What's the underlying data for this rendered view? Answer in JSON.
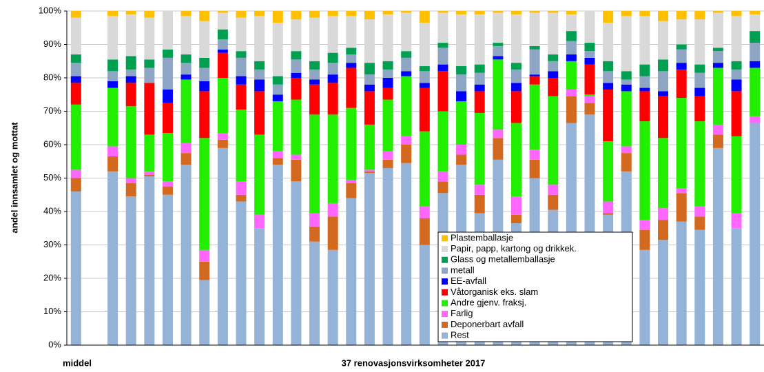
{
  "chart_data": {
    "type": "stacked_bar",
    "y_label": "andel innsamlet og mottat",
    "x_annotations": [
      "middel",
      "37 renovasjonsvirksomheter 2017"
    ],
    "categories": [
      null,
      null,
      null,
      null,
      null,
      null,
      null,
      null,
      null,
      null,
      null,
      null,
      null,
      null,
      null,
      null,
      null,
      null,
      null,
      null,
      null,
      null,
      null,
      null,
      null,
      null,
      null,
      null,
      null,
      null,
      null,
      null,
      null,
      null,
      null,
      null,
      null,
      null
    ],
    "ylim": [
      0,
      100
    ],
    "yticks": [
      {
        "value": 0,
        "label": "0%"
      },
      {
        "value": 10,
        "label": "10%"
      },
      {
        "value": 20,
        "label": "20%"
      },
      {
        "value": 30,
        "label": "30%"
      },
      {
        "value": 40,
        "label": "40%"
      },
      {
        "value": 50,
        "label": "50%"
      },
      {
        "value": 60,
        "label": "60%"
      },
      {
        "value": 70,
        "label": "70%"
      },
      {
        "value": 80,
        "label": "80%"
      },
      {
        "value": 90,
        "label": "90%"
      },
      {
        "value": 100,
        "label": "100%"
      }
    ],
    "grid": true,
    "legend": "inside-bottom-right",
    "series": [
      {
        "name": "Rest",
        "color": "#95b3d7",
        "values": [
          46,
          null,
          52,
          44.5,
          50.5,
          45,
          54,
          19.5,
          59,
          43,
          35,
          54,
          49,
          31,
          28.5,
          44,
          51.5,
          53,
          54.5,
          30,
          45.5,
          54,
          39.5,
          55.5,
          36.5,
          50,
          40.5,
          66.5,
          69,
          39,
          52,
          28.5,
          31.5,
          37,
          34.5,
          59,
          35,
          66.5
        ]
      },
      {
        "name": "Deponerbart avfall",
        "color": "#d2691e",
        "values": [
          4,
          null,
          4.5,
          4,
          0.5,
          2.5,
          3.5,
          5.5,
          2.5,
          2,
          0,
          2,
          6.5,
          4.5,
          10,
          4.5,
          0.5,
          2.5,
          5.5,
          8,
          3.5,
          3,
          5.5,
          6.5,
          2.5,
          5.5,
          4.5,
          8,
          3.5,
          0.5,
          5.5,
          6,
          6,
          8.5,
          4,
          4,
          0,
          0
        ]
      },
      {
        "name": "Farlig",
        "color": "#ff66ff",
        "values": [
          2.5,
          null,
          3,
          1.5,
          1,
          1.5,
          3,
          3.5,
          2,
          4,
          4,
          2,
          1.5,
          4,
          4,
          1,
          0.5,
          2.5,
          2.5,
          3.5,
          3,
          3,
          3,
          2.5,
          5.5,
          3,
          3,
          2,
          2,
          3.5,
          2,
          3,
          3.5,
          1.5,
          3,
          3,
          4.5,
          2
        ]
      },
      {
        "name": "Andre gjenv. fraksj.",
        "color": "#22ee00",
        "values": [
          19.5,
          null,
          17.5,
          21.5,
          11,
          14.5,
          19,
          33.5,
          16.5,
          21.5,
          24,
          15,
          16.5,
          29.5,
          26.5,
          21.5,
          13.5,
          15.5,
          18,
          22.5,
          18,
          13,
          21.5,
          21,
          22,
          19.5,
          26.5,
          8.5,
          0.5,
          18,
          16.5,
          29.5,
          21,
          27,
          25.5,
          17,
          23,
          14.5
        ]
      },
      {
        "name": "Våtorganisk eks. slam",
        "color": "#ff0000",
        "values": [
          6.5,
          null,
          0,
          7,
          15.5,
          9,
          0,
          14,
          7.5,
          7.5,
          13,
          0,
          6.5,
          9,
          9.5,
          12,
          10,
          3.5,
          0,
          13,
          12,
          0,
          6.5,
          0,
          9.5,
          2.5,
          5.5,
          0,
          9,
          15.5,
          0,
          9,
          12.5,
          8.5,
          7.5,
          0,
          13.5,
          0
        ]
      },
      {
        "name": "EE-avfall",
        "color": "#0000ff",
        "values": [
          2,
          null,
          2,
          2,
          0,
          4,
          1.5,
          3,
          1,
          2.5,
          3.5,
          2,
          1.5,
          1.5,
          2.5,
          1.5,
          2,
          3,
          1.5,
          1.5,
          2,
          3,
          2,
          1,
          2.5,
          0.5,
          2,
          2,
          2,
          2,
          2,
          1,
          1.5,
          2,
          2.5,
          1.5,
          3.5,
          2
        ]
      },
      {
        "name": "metall",
        "color": "#8fa5c4",
        "values": [
          4,
          null,
          3,
          2,
          4.5,
          9.5,
          3.5,
          4,
          3,
          5.5,
          3,
          3,
          4,
          3,
          3.5,
          2.5,
          3,
          2.5,
          4,
          3.5,
          5,
          5,
          3.5,
          3,
          4,
          7.5,
          3,
          4,
          2,
          3.5,
          1.5,
          3.5,
          6,
          4,
          4.5,
          3.5,
          3,
          5.5
        ]
      },
      {
        "name": "Glass og metallemballasje",
        "color": "#00a050",
        "values": [
          2.5,
          null,
          3.5,
          4,
          2.5,
          2.5,
          2.5,
          3,
          3,
          2,
          2.5,
          2.5,
          2.5,
          2.5,
          3,
          2,
          3.5,
          2.5,
          2,
          1.5,
          1.5,
          2.5,
          2.5,
          1,
          2,
          1,
          2,
          3,
          2.5,
          3,
          2.5,
          3.5,
          3.5,
          1.5,
          2.5,
          1,
          2.5,
          3.5
        ]
      },
      {
        "name": "Papir, papp, kartong og drikkek.",
        "color": "#d9d9d9",
        "values": [
          11,
          null,
          13,
          12.5,
          12.5,
          11.5,
          11.5,
          11,
          5,
          10,
          13.5,
          16,
          9.5,
          13,
          11,
          9.5,
          13,
          14,
          11.5,
          13,
          9,
          15.5,
          15,
          9,
          14.5,
          10,
          12.5,
          5,
          9.5,
          11.5,
          16.5,
          14.5,
          11.5,
          7.5,
          13.5,
          10.5,
          13.5,
          5
        ]
      },
      {
        "name": "Plastemballasje",
        "color": "#ffc000",
        "values": [
          2,
          null,
          1.5,
          1,
          2,
          0,
          1.5,
          3,
          0.5,
          2,
          1.5,
          3.5,
          2.5,
          2,
          1.5,
          1.5,
          2.5,
          1,
          0.5,
          3.5,
          0.5,
          1,
          1,
          0.5,
          1,
          0.5,
          0.5,
          1,
          0,
          3.5,
          1.5,
          1.5,
          3,
          2.5,
          2.5,
          0.5,
          1.5,
          1
        ]
      }
    ]
  }
}
